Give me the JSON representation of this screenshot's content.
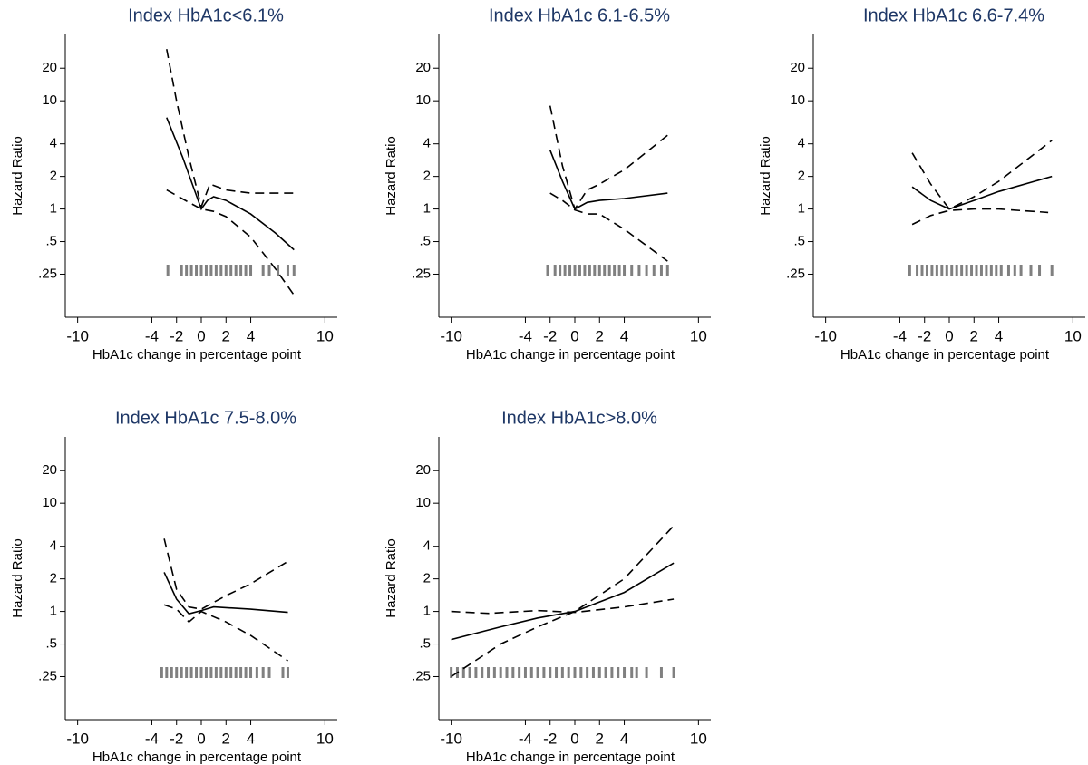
{
  "chart_data": [
    {
      "type": "line",
      "title": "Index HbA1c<6.1%",
      "xlabel": "HbA1c change in percentage point",
      "ylabel": "Hazard Ratio",
      "xlim": [
        -11,
        11
      ],
      "xticks": [
        -10,
        -4,
        -2,
        0,
        2,
        4,
        10
      ],
      "ylim": [
        0.1,
        41
      ],
      "yscale": "log",
      "yticks": [
        20,
        10,
        4,
        2,
        1,
        {
          "value": 0.5,
          "label": ".5"
        },
        {
          "value": 0.25,
          "label": ".25"
        }
      ],
      "series": [
        {
          "color": "#000000",
          "dash": "solid",
          "x": [
            -2.8,
            -1.5,
            0,
            0.5,
            1,
            2,
            4,
            6,
            7.5
          ],
          "values": [
            7,
            3,
            1,
            1.2,
            1.3,
            1.2,
            0.9,
            0.6,
            0.42
          ]
        },
        {
          "color": "#000000",
          "dash": "dashed",
          "x": [
            -2.8,
            -2,
            -1,
            0,
            0.7,
            2,
            4,
            7.5
          ],
          "values": [
            30,
            10,
            3,
            1.05,
            1.7,
            1.5,
            1.4,
            1.4
          ]
        },
        {
          "color": "#000000",
          "dash": "dashed",
          "x": [
            -2.8,
            -1,
            0,
            1,
            2,
            4,
            6,
            7.5
          ],
          "values": [
            1.5,
            1.15,
            1,
            0.95,
            0.85,
            0.55,
            0.28,
            0.16
          ]
        }
      ],
      "rug_color": "#808080",
      "rug": [
        -2.7,
        -1.6,
        -1.2,
        -0.8,
        -0.4,
        0,
        0.4,
        0.8,
        1.2,
        1.6,
        2,
        2.4,
        2.8,
        3.2,
        3.6,
        4,
        5,
        5.5,
        6.2,
        7,
        7.5
      ]
    },
    {
      "type": "line",
      "title": "Index HbA1c 6.1-6.5%",
      "xlabel": "HbA1c change in percentage point",
      "ylabel": "Hazard Ratio",
      "xlim": [
        -11,
        11
      ],
      "xticks": [
        -10,
        -4,
        -2,
        0,
        2,
        4,
        10
      ],
      "ylim": [
        0.1,
        41
      ],
      "yscale": "log",
      "yticks": [
        20,
        10,
        4,
        2,
        1,
        {
          "value": 0.5,
          "label": ".5"
        },
        {
          "value": 0.25,
          "label": ".25"
        }
      ],
      "series": [
        {
          "color": "#000000",
          "dash": "solid",
          "x": [
            -2,
            -1,
            0,
            1,
            2,
            4,
            7.5
          ],
          "values": [
            3.5,
            1.8,
            1,
            1.15,
            1.2,
            1.25,
            1.4
          ]
        },
        {
          "color": "#000000",
          "dash": "dashed",
          "x": [
            -2,
            -1,
            0,
            1,
            2,
            4,
            7.5
          ],
          "values": [
            9,
            2.5,
            1,
            1.5,
            1.7,
            2.3,
            4.8
          ]
        },
        {
          "color": "#000000",
          "dash": "dashed",
          "x": [
            -2,
            -1,
            0,
            1,
            2,
            4,
            7.5
          ],
          "values": [
            1.4,
            1.2,
            0.98,
            0.9,
            0.9,
            0.65,
            0.33
          ]
        }
      ],
      "rug_color": "#808080",
      "rug": [
        -2.2,
        -1.6,
        -1.2,
        -0.8,
        -0.4,
        0,
        0.4,
        0.8,
        1.2,
        1.6,
        2,
        2.4,
        2.8,
        3.2,
        3.6,
        4,
        4.6,
        5.2,
        5.8,
        6.4,
        7,
        7.5
      ]
    },
    {
      "type": "line",
      "title": "Index HbA1c 6.6-7.4%",
      "xlabel": "HbA1c change in percentage point",
      "ylabel": "Hazard Ratio",
      "xlim": [
        -11,
        11
      ],
      "xticks": [
        -10,
        -4,
        -2,
        0,
        2,
        4,
        10
      ],
      "ylim": [
        0.1,
        41
      ],
      "yscale": "log",
      "yticks": [
        20,
        10,
        4,
        2,
        1,
        {
          "value": 0.5,
          "label": ".5"
        },
        {
          "value": 0.25,
          "label": ".25"
        }
      ],
      "series": [
        {
          "color": "#000000",
          "dash": "solid",
          "x": [
            -3,
            -1.5,
            0,
            2,
            4,
            8.3
          ],
          "values": [
            1.6,
            1.2,
            1,
            1.2,
            1.45,
            2
          ]
        },
        {
          "color": "#000000",
          "dash": "dashed",
          "x": [
            -3,
            -1.5,
            0,
            2,
            4,
            8.3
          ],
          "values": [
            3.3,
            1.7,
            1,
            1.3,
            1.8,
            4.3
          ]
        },
        {
          "color": "#000000",
          "dash": "dashed",
          "x": [
            -3,
            -1.5,
            0,
            2,
            4,
            8
          ],
          "values": [
            0.72,
            0.87,
            0.97,
            1,
            1,
            0.93
          ]
        }
      ],
      "rug_color": "#808080",
      "rug": [
        -3.2,
        -2.6,
        -2.2,
        -1.8,
        -1.4,
        -1,
        -0.6,
        -0.2,
        0.2,
        0.6,
        1,
        1.4,
        1.8,
        2.2,
        2.6,
        3,
        3.4,
        3.8,
        4.2,
        4.8,
        5.3,
        5.8,
        6.6,
        7.3,
        8.3
      ]
    },
    {
      "type": "line",
      "title": "Index HbA1c 7.5-8.0%",
      "xlabel": "HbA1c change in percentage point",
      "ylabel": "Hazard Ratio",
      "xlim": [
        -11,
        11
      ],
      "xticks": [
        -10,
        -4,
        -2,
        0,
        2,
        4,
        10
      ],
      "ylim": [
        0.1,
        41
      ],
      "yscale": "log",
      "yticks": [
        20,
        10,
        4,
        2,
        1,
        {
          "value": 0.5,
          "label": ".5"
        },
        {
          "value": 0.25,
          "label": ".25"
        }
      ],
      "series": [
        {
          "color": "#000000",
          "dash": "solid",
          "x": [
            -3,
            -2,
            -1,
            0,
            1,
            4,
            7
          ],
          "values": [
            2.3,
            1.3,
            0.95,
            1.02,
            1.1,
            1.05,
            0.98
          ]
        },
        {
          "color": "#000000",
          "dash": "dashed",
          "x": [
            -3,
            -2,
            -1,
            0,
            2,
            4,
            7
          ],
          "values": [
            4.7,
            1.6,
            1.1,
            1.05,
            1.4,
            1.8,
            2.9
          ]
        },
        {
          "color": "#000000",
          "dash": "dashed",
          "x": [
            -3,
            -2,
            -1,
            0,
            2,
            4,
            7
          ],
          "values": [
            1.15,
            1.05,
            0.8,
            1,
            0.8,
            0.6,
            0.35
          ]
        }
      ],
      "rug_color": "#808080",
      "rug": [
        -3.2,
        -2.8,
        -2.4,
        -2,
        -1.6,
        -1.2,
        -0.8,
        -0.4,
        0,
        0.4,
        0.8,
        1.2,
        1.6,
        2,
        2.4,
        2.8,
        3.2,
        3.6,
        4,
        4.5,
        5,
        5.5,
        6.6,
        7
      ]
    },
    {
      "type": "line",
      "title": "Index HbA1c>8.0%",
      "xlabel": "HbA1c change in percentage point",
      "ylabel": "Hazard Ratio",
      "xlim": [
        -11,
        11
      ],
      "xticks": [
        -10,
        -4,
        -2,
        0,
        2,
        4,
        10
      ],
      "ylim": [
        0.1,
        41
      ],
      "yscale": "log",
      "yticks": [
        20,
        10,
        4,
        2,
        1,
        {
          "value": 0.5,
          "label": ".5"
        },
        {
          "value": 0.25,
          "label": ".25"
        }
      ],
      "series": [
        {
          "color": "#000000",
          "dash": "solid",
          "x": [
            -10,
            -6,
            -3,
            0,
            4,
            8
          ],
          "values": [
            0.55,
            0.72,
            0.87,
            1,
            1.5,
            2.8
          ]
        },
        {
          "color": "#000000",
          "dash": "dashed",
          "x": [
            -10,
            -6,
            -3,
            0,
            4,
            8
          ],
          "values": [
            0.25,
            0.5,
            0.72,
            1,
            2,
            6.2
          ]
        },
        {
          "color": "#000000",
          "dash": "dashed",
          "x": [
            -10,
            -7,
            -3,
            0,
            4,
            8
          ],
          "values": [
            1,
            0.96,
            1.02,
            0.98,
            1.1,
            1.3
          ]
        }
      ],
      "rug_color": "#808080",
      "rug": [
        -10,
        -9.5,
        -9,
        -8.5,
        -8,
        -7.5,
        -7,
        -6.5,
        -6,
        -5.5,
        -5,
        -4.5,
        -4,
        -3.5,
        -3,
        -2.5,
        -2,
        -1.5,
        -1,
        -0.5,
        0,
        0.5,
        1,
        1.5,
        2,
        2.5,
        3,
        3.5,
        4,
        4.6,
        5,
        5.8,
        7,
        8
      ]
    }
  ]
}
